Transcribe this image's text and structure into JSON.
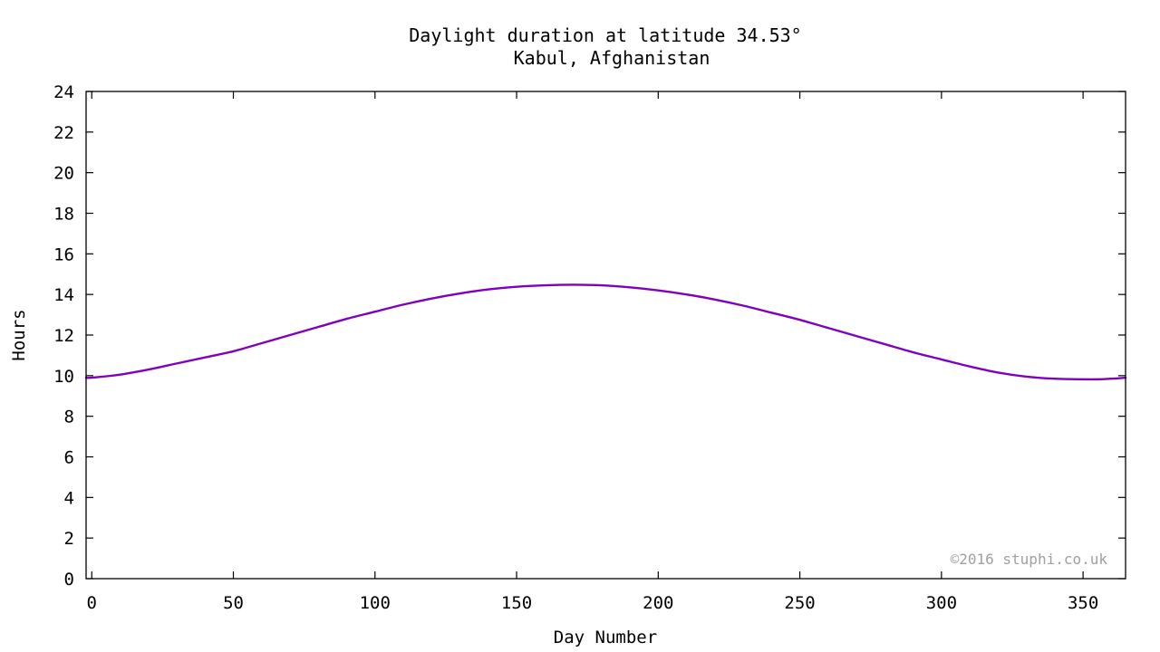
{
  "chart_data": {
    "type": "line",
    "title": "Daylight duration at latitude 34.53°",
    "subtitle": "Kabul, Afghanistan",
    "xlabel": "Day Number",
    "ylabel": "Hours",
    "xlim": [
      -2,
      365
    ],
    "ylim": [
      0,
      24
    ],
    "x_ticks": [
      0,
      50,
      100,
      150,
      200,
      250,
      300,
      350
    ],
    "y_ticks": [
      0,
      2,
      4,
      6,
      8,
      10,
      12,
      14,
      16,
      18,
      20,
      22,
      24
    ],
    "grid": false,
    "credit": "©2016 stuphi.co.uk",
    "line_color": "#8000c0",
    "series": [
      {
        "x": [
          -2,
          0,
          10,
          20,
          30,
          40,
          50,
          60,
          70,
          80,
          90,
          100,
          110,
          120,
          130,
          140,
          150,
          160,
          170,
          180,
          190,
          200,
          210,
          220,
          230,
          240,
          250,
          260,
          270,
          280,
          290,
          300,
          310,
          320,
          330,
          340,
          350,
          355,
          360,
          365
        ],
        "values": [
          9.9,
          9.9,
          10.05,
          10.3,
          10.6,
          10.9,
          11.2,
          11.6,
          12.0,
          12.4,
          12.8,
          13.15,
          13.5,
          13.8,
          14.05,
          14.25,
          14.38,
          14.45,
          14.48,
          14.45,
          14.35,
          14.2,
          14.0,
          13.75,
          13.45,
          13.1,
          12.75,
          12.35,
          11.95,
          11.55,
          11.15,
          10.8,
          10.45,
          10.15,
          9.95,
          9.85,
          9.82,
          9.82,
          9.85,
          9.9
        ]
      }
    ]
  }
}
